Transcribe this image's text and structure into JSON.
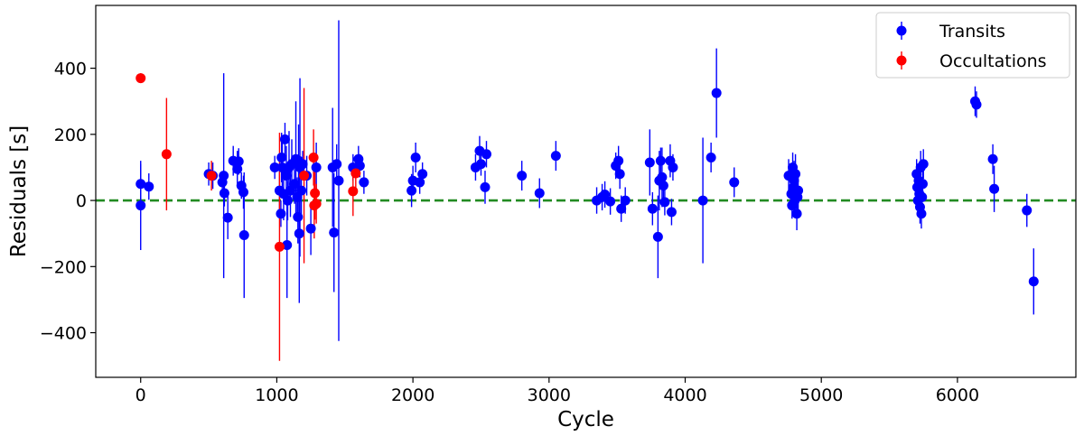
{
  "chart_data": {
    "type": "scatter",
    "title": "",
    "xlabel": "Cycle",
    "ylabel": "Residuals [s]",
    "xlim": [
      -330,
      6870
    ],
    "ylim": [
      -535,
      590
    ],
    "xticks": [
      0,
      1000,
      2000,
      3000,
      4000,
      5000,
      6000
    ],
    "yticks": [
      -400,
      -200,
      0,
      200,
      400
    ],
    "ytick_labels": [
      "−400",
      "−200",
      "0",
      "200",
      "400"
    ],
    "reference_line": {
      "y": 0,
      "color": "#228b22",
      "style": "dashed"
    },
    "grid": false,
    "legend_position": "top-right",
    "series": [
      {
        "name": "Transits",
        "color": "#0000ff",
        "points": [
          {
            "x": 0,
            "y": 50,
            "err": 60
          },
          {
            "x": 0,
            "y": -15,
            "err": 135
          },
          {
            "x": 60,
            "y": 42,
            "err": 40
          },
          {
            "x": 500,
            "y": 80,
            "err": 35
          },
          {
            "x": 530,
            "y": 75,
            "err": 40
          },
          {
            "x": 600,
            "y": 55,
            "err": 30
          },
          {
            "x": 610,
            "y": 75,
            "err": 310
          },
          {
            "x": 615,
            "y": 22,
            "err": 40
          },
          {
            "x": 640,
            "y": -52,
            "err": 65
          },
          {
            "x": 680,
            "y": 120,
            "err": 45
          },
          {
            "x": 710,
            "y": 95,
            "err": 55
          },
          {
            "x": 720,
            "y": 118,
            "err": 40
          },
          {
            "x": 740,
            "y": 45,
            "err": 40
          },
          {
            "x": 755,
            "y": 25,
            "err": 50
          },
          {
            "x": 760,
            "y": -105,
            "err": 190
          },
          {
            "x": 985,
            "y": 100,
            "err": 35
          },
          {
            "x": 1020,
            "y": 30,
            "err": 80
          },
          {
            "x": 1030,
            "y": -40,
            "err": 40
          },
          {
            "x": 1035,
            "y": 130,
            "err": 75
          },
          {
            "x": 1040,
            "y": 100,
            "err": 80
          },
          {
            "x": 1050,
            "y": 20,
            "err": 80
          },
          {
            "x": 1060,
            "y": 185,
            "err": 50
          },
          {
            "x": 1070,
            "y": 75,
            "err": 90
          },
          {
            "x": 1075,
            "y": -135,
            "err": 160
          },
          {
            "x": 1080,
            "y": 0,
            "err": 60
          },
          {
            "x": 1090,
            "y": 100,
            "err": 110
          },
          {
            "x": 1100,
            "y": 30,
            "err": 80
          },
          {
            "x": 1110,
            "y": 110,
            "err": 75
          },
          {
            "x": 1130,
            "y": 50,
            "err": 60
          },
          {
            "x": 1140,
            "y": 125,
            "err": 175
          },
          {
            "x": 1150,
            "y": 10,
            "err": 60
          },
          {
            "x": 1155,
            "y": -50,
            "err": 80
          },
          {
            "x": 1160,
            "y": 120,
            "err": 110
          },
          {
            "x": 1165,
            "y": -100,
            "err": 210
          },
          {
            "x": 1170,
            "y": 100,
            "err": 270
          },
          {
            "x": 1180,
            "y": 30,
            "err": 80
          },
          {
            "x": 1190,
            "y": 110,
            "err": 40
          },
          {
            "x": 1220,
            "y": 75,
            "err": 60
          },
          {
            "x": 1250,
            "y": -85,
            "err": 80
          },
          {
            "x": 1290,
            "y": 100,
            "err": 75
          },
          {
            "x": 1410,
            "y": 100,
            "err": 180
          },
          {
            "x": 1420,
            "y": -97,
            "err": 180
          },
          {
            "x": 1440,
            "y": 110,
            "err": 60
          },
          {
            "x": 1455,
            "y": 60,
            "err": 485
          },
          {
            "x": 1560,
            "y": 100,
            "err": 40
          },
          {
            "x": 1600,
            "y": 125,
            "err": 40
          },
          {
            "x": 1610,
            "y": 105,
            "err": 35
          },
          {
            "x": 1640,
            "y": 55,
            "err": 35
          },
          {
            "x": 1990,
            "y": 30,
            "err": 50
          },
          {
            "x": 2000,
            "y": 60,
            "err": 45
          },
          {
            "x": 2020,
            "y": 130,
            "err": 45
          },
          {
            "x": 2050,
            "y": 55,
            "err": 35
          },
          {
            "x": 2070,
            "y": 80,
            "err": 35
          },
          {
            "x": 2460,
            "y": 100,
            "err": 40
          },
          {
            "x": 2490,
            "y": 150,
            "err": 45
          },
          {
            "x": 2500,
            "y": 110,
            "err": 35
          },
          {
            "x": 2530,
            "y": 40,
            "err": 50
          },
          {
            "x": 2540,
            "y": 140,
            "err": 40
          },
          {
            "x": 2800,
            "y": 75,
            "err": 45
          },
          {
            "x": 2930,
            "y": 22,
            "err": 45
          },
          {
            "x": 3050,
            "y": 135,
            "err": 45
          },
          {
            "x": 3350,
            "y": 0,
            "err": 40
          },
          {
            "x": 3390,
            "y": 10,
            "err": 40
          },
          {
            "x": 3410,
            "y": 18,
            "err": 40
          },
          {
            "x": 3450,
            "y": -3,
            "err": 40
          },
          {
            "x": 3490,
            "y": 105,
            "err": 40
          },
          {
            "x": 3510,
            "y": 120,
            "err": 45
          },
          {
            "x": 3520,
            "y": 80,
            "err": 45
          },
          {
            "x": 3530,
            "y": -25,
            "err": 40
          },
          {
            "x": 3560,
            "y": 0,
            "err": 40
          },
          {
            "x": 3740,
            "y": 115,
            "err": 100
          },
          {
            "x": 3760,
            "y": -25,
            "err": 50
          },
          {
            "x": 3800,
            "y": -110,
            "err": 125
          },
          {
            "x": 3810,
            "y": 60,
            "err": 90
          },
          {
            "x": 3820,
            "y": 120,
            "err": 40
          },
          {
            "x": 3830,
            "y": 70,
            "err": 90
          },
          {
            "x": 3840,
            "y": 45,
            "err": 40
          },
          {
            "x": 3850,
            "y": -5,
            "err": 40
          },
          {
            "x": 3890,
            "y": 120,
            "err": 50
          },
          {
            "x": 3900,
            "y": -35,
            "err": 40
          },
          {
            "x": 3910,
            "y": 100,
            "err": 40
          },
          {
            "x": 4130,
            "y": 0,
            "err": 190
          },
          {
            "x": 4190,
            "y": 130,
            "err": 45
          },
          {
            "x": 4230,
            "y": 325,
            "err": 135
          },
          {
            "x": 4360,
            "y": 55,
            "err": 45
          },
          {
            "x": 4760,
            "y": 75,
            "err": 50
          },
          {
            "x": 4780,
            "y": 20,
            "err": 50
          },
          {
            "x": 4785,
            "y": -15,
            "err": 40
          },
          {
            "x": 4790,
            "y": 100,
            "err": 45
          },
          {
            "x": 4795,
            "y": 40,
            "err": 50
          },
          {
            "x": 4800,
            "y": 60,
            "err": 60
          },
          {
            "x": 4805,
            "y": 0,
            "err": 50
          },
          {
            "x": 4810,
            "y": 80,
            "err": 60
          },
          {
            "x": 4815,
            "y": 25,
            "err": 50
          },
          {
            "x": 4820,
            "y": -40,
            "err": 50
          },
          {
            "x": 4825,
            "y": 10,
            "err": 45
          },
          {
            "x": 4830,
            "y": 30,
            "err": 60
          },
          {
            "x": 5700,
            "y": 80,
            "err": 45
          },
          {
            "x": 5705,
            "y": 40,
            "err": 50
          },
          {
            "x": 5710,
            "y": 0,
            "err": 45
          },
          {
            "x": 5715,
            "y": 60,
            "err": 50
          },
          {
            "x": 5720,
            "y": 20,
            "err": 45
          },
          {
            "x": 5725,
            "y": -20,
            "err": 50
          },
          {
            "x": 5730,
            "y": 100,
            "err": 50
          },
          {
            "x": 5735,
            "y": -40,
            "err": 45
          },
          {
            "x": 5740,
            "y": 10,
            "err": 50
          },
          {
            "x": 5745,
            "y": 50,
            "err": 45
          },
          {
            "x": 5750,
            "y": 110,
            "err": 45
          },
          {
            "x": 6130,
            "y": 300,
            "err": 45
          },
          {
            "x": 6140,
            "y": 290,
            "err": 40
          },
          {
            "x": 6260,
            "y": 125,
            "err": 45
          },
          {
            "x": 6270,
            "y": 35,
            "err": 70
          },
          {
            "x": 6510,
            "y": -30,
            "err": 50
          },
          {
            "x": 6560,
            "y": -245,
            "err": 100
          }
        ]
      },
      {
        "name": "Occultations",
        "color": "#ff0000",
        "points": [
          {
            "x": 0,
            "y": 370,
            "err": 15
          },
          {
            "x": 190,
            "y": 140,
            "err": 170
          },
          {
            "x": 520,
            "y": 75,
            "err": 45
          },
          {
            "x": 1020,
            "y": -140,
            "err": 345
          },
          {
            "x": 1200,
            "y": 75,
            "err": 265
          },
          {
            "x": 1270,
            "y": 130,
            "err": 85
          },
          {
            "x": 1275,
            "y": -15,
            "err": 100
          },
          {
            "x": 1280,
            "y": 22,
            "err": 80
          },
          {
            "x": 1290,
            "y": -10,
            "err": 60
          },
          {
            "x": 1560,
            "y": 28,
            "err": 75
          },
          {
            "x": 1580,
            "y": 82,
            "err": 55
          }
        ]
      }
    ]
  }
}
